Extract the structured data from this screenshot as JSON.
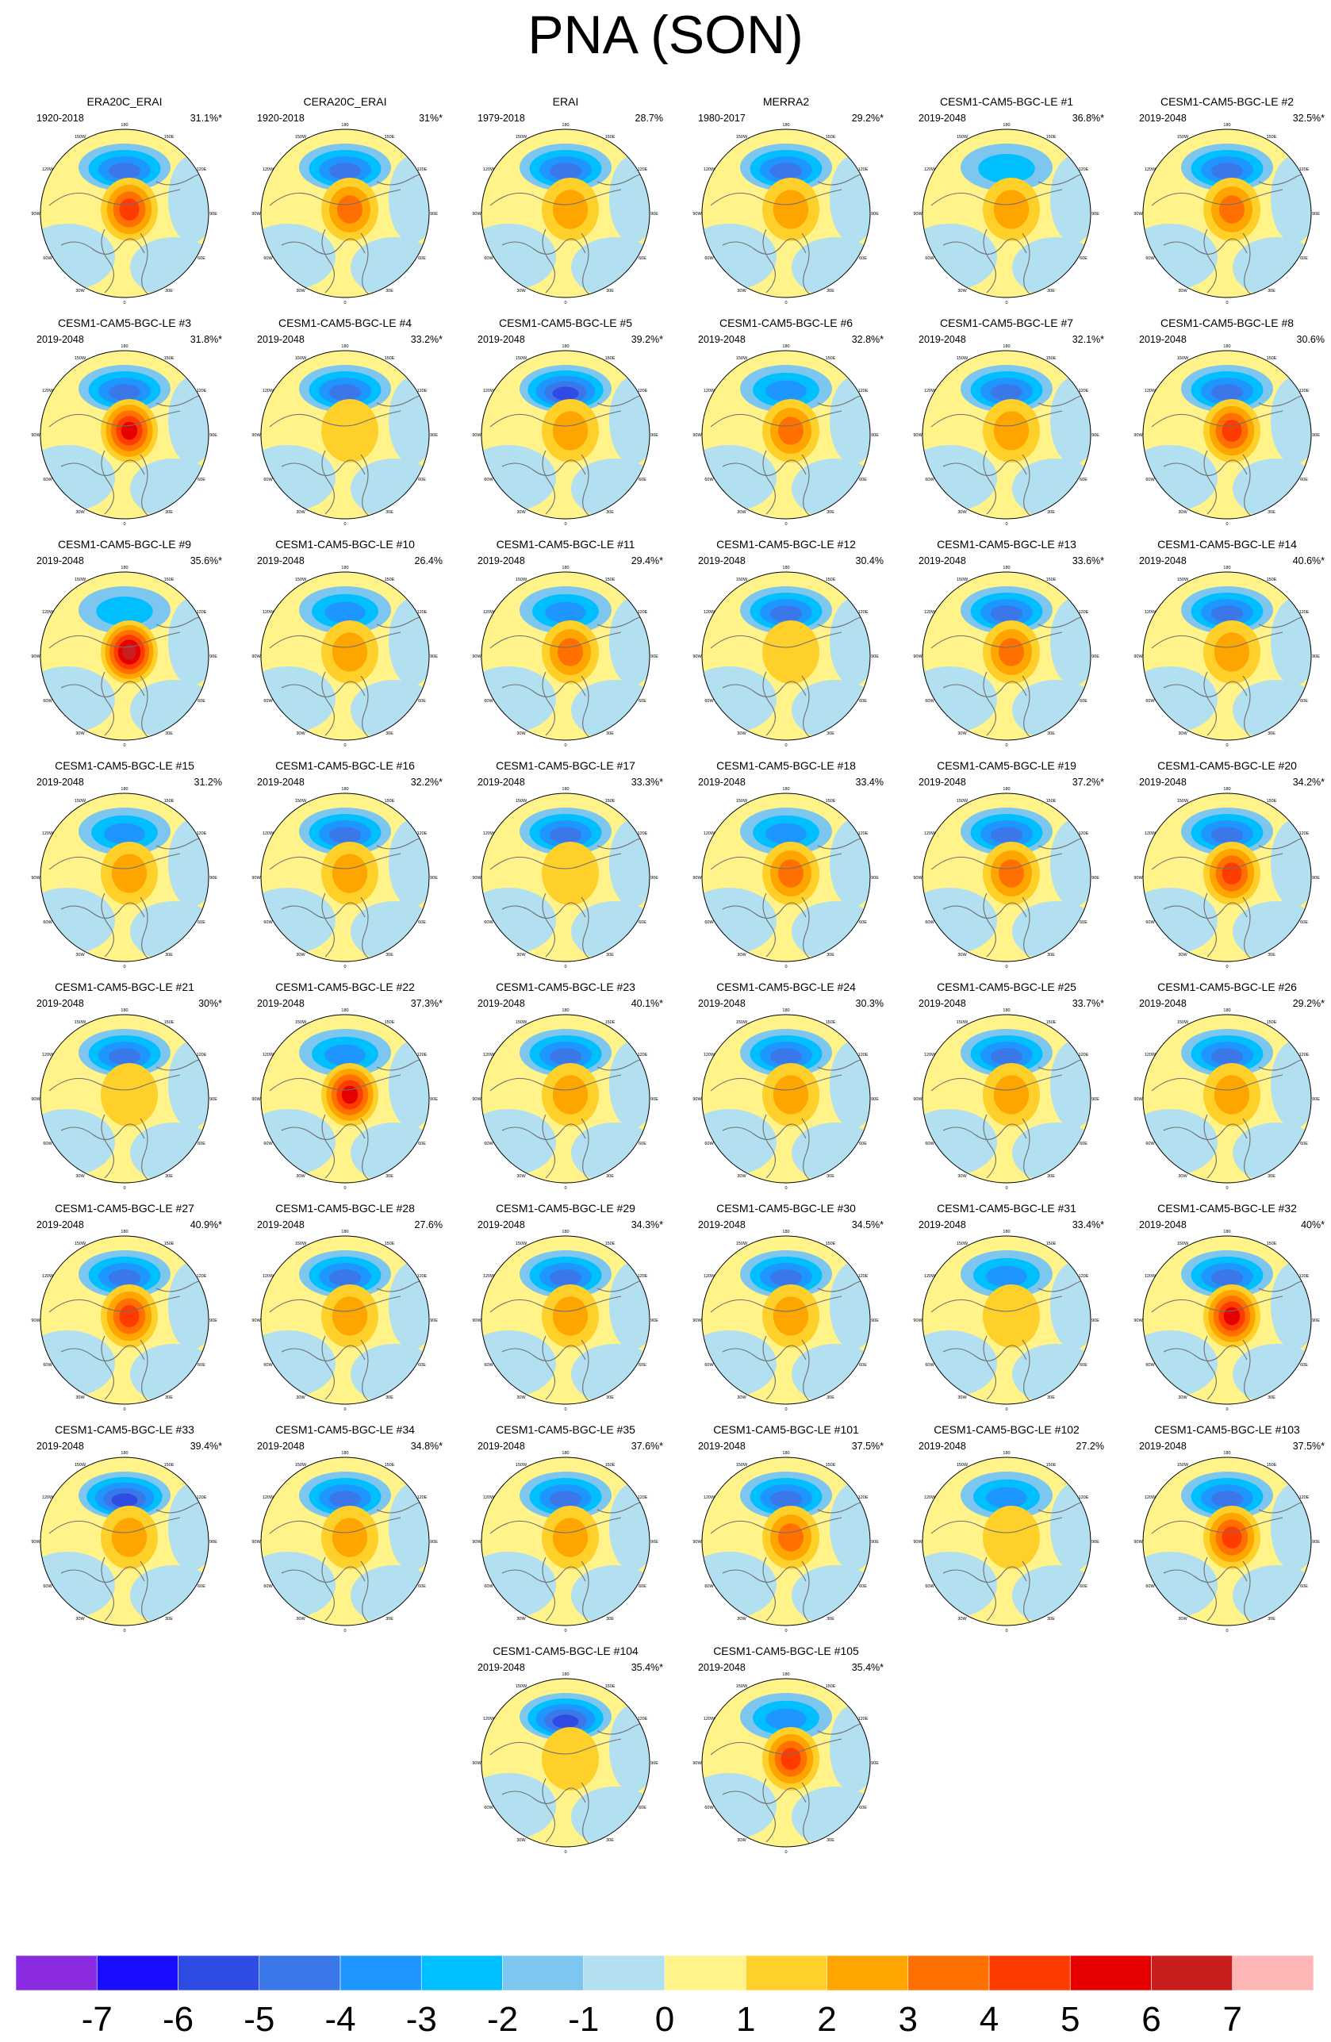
{
  "title": "PNA (SON)",
  "panel_marks": {
    "lat_labels": [
      "180",
      "150W",
      "150E",
      "120W",
      "120E",
      "90W",
      "90E",
      "60W",
      "60E",
      "30W",
      "30E",
      "0"
    ]
  },
  "chart_data": {
    "type": "heatmap",
    "title": "PNA (SON)",
    "projection": "north-polar-stereographic",
    "colorbar": {
      "ticks": [
        "-7",
        "-6",
        "-5",
        "-4",
        "-3",
        "-2",
        "-1",
        "0",
        "1",
        "2",
        "3",
        "4",
        "5",
        "6",
        "7"
      ],
      "colors": [
        "#8a2be2",
        "#1a0dff",
        "#2e4ce3",
        "#3a78ea",
        "#1e96ff",
        "#00bfff",
        "#7cc6f0",
        "#b2e0f0",
        "#fff38a",
        "#ffd02a",
        "#ffa500",
        "#ff7000",
        "#ff3c00",
        "#e60000",
        "#c81e1e",
        "#ffb6b6"
      ]
    },
    "panels": [
      {
        "title": "ERA20C_ERAI",
        "period": "1920-2018",
        "variance": "31.1%*",
        "pattern": {
          "neg": 3.5,
          "pos": 3.5
        }
      },
      {
        "title": "CERA20C_ERAI",
        "period": "1920-2018",
        "variance": "31%*",
        "pattern": {
          "neg": 3.5,
          "pos": 3
        }
      },
      {
        "title": "ERAI",
        "period": "1979-2018",
        "variance": "28.7%",
        "pattern": {
          "neg": 3.5,
          "pos": 1.5
        }
      },
      {
        "title": "MERRA2",
        "period": "1980-2017",
        "variance": "29.2%*",
        "pattern": {
          "neg": 3.5,
          "pos": 2
        }
      },
      {
        "title": "CESM1-CAM5-BGC-LE #1",
        "period": "2019-2048",
        "variance": "36.8%*",
        "pattern": {
          "neg": 2,
          "pos": 1.5
        }
      },
      {
        "title": "CESM1-CAM5-BGC-LE #2",
        "period": "2019-2048",
        "variance": "32.5%*",
        "pattern": {
          "neg": 3.5,
          "pos": 3
        }
      },
      {
        "title": "CESM1-CAM5-BGC-LE #3",
        "period": "2019-2048",
        "variance": "31.8%*",
        "pattern": {
          "neg": 3.5,
          "pos": 5
        }
      },
      {
        "title": "CESM1-CAM5-BGC-LE #4",
        "period": "2019-2048",
        "variance": "33.2%*",
        "pattern": {
          "neg": 3.5,
          "pos": 0.5
        }
      },
      {
        "title": "CESM1-CAM5-BGC-LE #5",
        "period": "2019-2048",
        "variance": "39.2%*",
        "pattern": {
          "neg": 4.5,
          "pos": 2
        }
      },
      {
        "title": "CESM1-CAM5-BGC-LE #6",
        "period": "2019-2048",
        "variance": "32.8%*",
        "pattern": {
          "neg": 2.5,
          "pos": 3
        }
      },
      {
        "title": "CESM1-CAM5-BGC-LE #7",
        "period": "2019-2048",
        "variance": "32.1%*",
        "pattern": {
          "neg": 3.5,
          "pos": 1.5
        }
      },
      {
        "title": "CESM1-CAM5-BGC-LE #8",
        "period": "2019-2048",
        "variance": "30.6%",
        "pattern": {
          "neg": 3.5,
          "pos": 4
        }
      },
      {
        "title": "CESM1-CAM5-BGC-LE #9",
        "period": "2019-2048",
        "variance": "35.6%*",
        "pattern": {
          "neg": 2,
          "pos": 5.5
        }
      },
      {
        "title": "CESM1-CAM5-BGC-LE #10",
        "period": "2019-2048",
        "variance": "26.4%",
        "pattern": {
          "neg": 3,
          "pos": 1.5
        }
      },
      {
        "title": "CESM1-CAM5-BGC-LE #11",
        "period": "2019-2048",
        "variance": "29.4%*",
        "pattern": {
          "neg": 2.5,
          "pos": 3
        }
      },
      {
        "title": "CESM1-CAM5-BGC-LE #12",
        "period": "2019-2048",
        "variance": "30.4%",
        "pattern": {
          "neg": 3.5,
          "pos": 1
        }
      },
      {
        "title": "CESM1-CAM5-BGC-LE #13",
        "period": "2019-2048",
        "variance": "33.6%*",
        "pattern": {
          "neg": 3.5,
          "pos": 2.5
        }
      },
      {
        "title": "CESM1-CAM5-BGC-LE #14",
        "period": "2019-2048",
        "variance": "40.6%*",
        "pattern": {
          "neg": 4,
          "pos": 1.5
        }
      },
      {
        "title": "CESM1-CAM5-BGC-LE #15",
        "period": "2019-2048",
        "variance": "31.2%",
        "pattern": {
          "neg": 3,
          "pos": 1.5
        }
      },
      {
        "title": "CESM1-CAM5-BGC-LE #16",
        "period": "2019-2048",
        "variance": "32.2%*",
        "pattern": {
          "neg": 3.5,
          "pos": 1.5
        }
      },
      {
        "title": "CESM1-CAM5-BGC-LE #17",
        "period": "2019-2048",
        "variance": "33.3%*",
        "pattern": {
          "neg": 4,
          "pos": 1
        }
      },
      {
        "title": "CESM1-CAM5-BGC-LE #18",
        "period": "2019-2048",
        "variance": "33.4%",
        "pattern": {
          "neg": 3,
          "pos": 3
        }
      },
      {
        "title": "CESM1-CAM5-BGC-LE #19",
        "period": "2019-2048",
        "variance": "37.2%*",
        "pattern": {
          "neg": 4,
          "pos": 2.5
        }
      },
      {
        "title": "CESM1-CAM5-BGC-LE #20",
        "period": "2019-2048",
        "variance": "34.2%*",
        "pattern": {
          "neg": 3.5,
          "pos": 3.5
        }
      },
      {
        "title": "CESM1-CAM5-BGC-LE #21",
        "period": "2019-2048",
        "variance": "30%*",
        "pattern": {
          "neg": 3.5,
          "pos": 1
        }
      },
      {
        "title": "CESM1-CAM5-BGC-LE #22",
        "period": "2019-2048",
        "variance": "37.3%*",
        "pattern": {
          "neg": 3,
          "pos": 5
        }
      },
      {
        "title": "CESM1-CAM5-BGC-LE #23",
        "period": "2019-2048",
        "variance": "40.1%*",
        "pattern": {
          "neg": 4,
          "pos": 2
        }
      },
      {
        "title": "CESM1-CAM5-BGC-LE #24",
        "period": "2019-2048",
        "variance": "30.3%",
        "pattern": {
          "neg": 3.5,
          "pos": 2
        }
      },
      {
        "title": "CESM1-CAM5-BGC-LE #25",
        "period": "2019-2048",
        "variance": "33.7%*",
        "pattern": {
          "neg": 3.5,
          "pos": 2
        }
      },
      {
        "title": "CESM1-CAM5-BGC-LE #26",
        "period": "2019-2048",
        "variance": "29.2%*",
        "pattern": {
          "neg": 3.5,
          "pos": 2
        }
      },
      {
        "title": "CESM1-CAM5-BGC-LE #27",
        "period": "2019-2048",
        "variance": "40.9%*",
        "pattern": {
          "neg": 4,
          "pos": 4
        }
      },
      {
        "title": "CESM1-CAM5-BGC-LE #28",
        "period": "2019-2048",
        "variance": "27.6%",
        "pattern": {
          "neg": 3.5,
          "pos": 2
        }
      },
      {
        "title": "CESM1-CAM5-BGC-LE #29",
        "period": "2019-2048",
        "variance": "34.3%*",
        "pattern": {
          "neg": 3.5,
          "pos": 2
        }
      },
      {
        "title": "CESM1-CAM5-BGC-LE #30",
        "period": "2019-2048",
        "variance": "34.5%*",
        "pattern": {
          "neg": 4,
          "pos": 2
        }
      },
      {
        "title": "CESM1-CAM5-BGC-LE #31",
        "period": "2019-2048",
        "variance": "33.4%*",
        "pattern": {
          "neg": 3,
          "pos": 1
        }
      },
      {
        "title": "CESM1-CAM5-BGC-LE #32",
        "period": "2019-2048",
        "variance": "40%*",
        "pattern": {
          "neg": 3.5,
          "pos": 5
        }
      },
      {
        "title": "CESM1-CAM5-BGC-LE #33",
        "period": "2019-2048",
        "variance": "39.4%*",
        "pattern": {
          "neg": 4.5,
          "pos": 2
        }
      },
      {
        "title": "CESM1-CAM5-BGC-LE #34",
        "period": "2019-2048",
        "variance": "34.8%*",
        "pattern": {
          "neg": 4,
          "pos": 2
        }
      },
      {
        "title": "CESM1-CAM5-BGC-LE #35",
        "period": "2019-2048",
        "variance": "37.6%*",
        "pattern": {
          "neg": 3.5,
          "pos": 2
        }
      },
      {
        "title": "CESM1-CAM5-BGC-LE #101",
        "period": "2019-2048",
        "variance": "37.5%*",
        "pattern": {
          "neg": 3.5,
          "pos": 2.5
        }
      },
      {
        "title": "CESM1-CAM5-BGC-LE #102",
        "period": "2019-2048",
        "variance": "27.2%",
        "pattern": {
          "neg": 3,
          "pos": 1
        }
      },
      {
        "title": "CESM1-CAM5-BGC-LE #103",
        "period": "2019-2048",
        "variance": "37.5%*",
        "pattern": {
          "neg": 3.5,
          "pos": 4
        }
      },
      {
        "title": "CESM1-CAM5-BGC-LE #104",
        "period": "2019-2048",
        "variance": "35.4%*",
        "pattern": {
          "neg": 5,
          "pos": 0.5
        }
      },
      {
        "title": "CESM1-CAM5-BGC-LE #105",
        "period": "2019-2048",
        "variance": "35.4%*",
        "pattern": {
          "neg": 3,
          "pos": 4
        }
      }
    ]
  }
}
